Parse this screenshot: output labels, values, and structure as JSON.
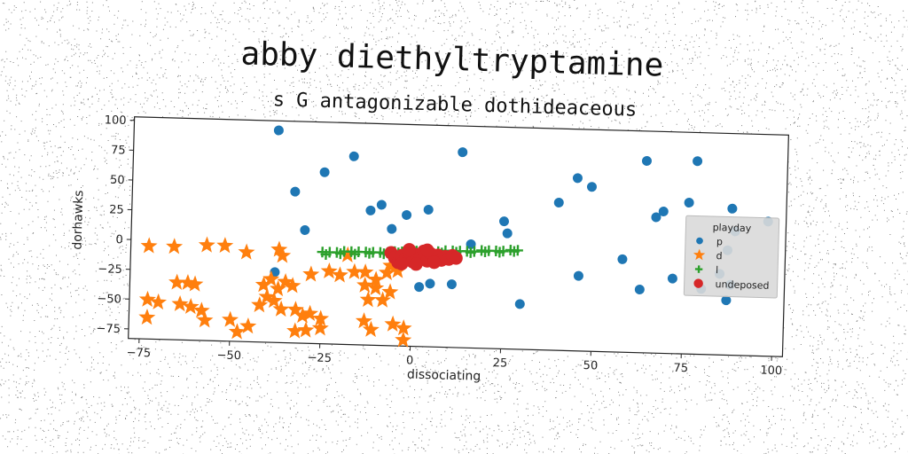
{
  "titles": {
    "main": "abby diethyltryptamine",
    "sub": "s G antagonizable dothideaceous"
  },
  "chart_data": {
    "type": "scatter",
    "title": "abby diethyltryptamine",
    "subtitle": "s G antagonizable dothideaceous",
    "xlabel": "dissociating",
    "ylabel": "dorhawks",
    "xlim": [
      -78,
      103
    ],
    "ylim": [
      -83,
      103
    ],
    "xticks": [
      -75,
      -50,
      -25,
      0,
      25,
      50,
      75,
      100
    ],
    "yticks": [
      -75,
      -50,
      -25,
      0,
      25,
      50,
      75,
      100
    ],
    "grid": false,
    "legend": {
      "title": "playday",
      "placement": "right"
    },
    "series": [
      {
        "name": "p",
        "marker": "circle",
        "color": "#1f77b4",
        "points": [
          [
            -38,
            95
          ],
          [
            -33,
            44
          ],
          [
            -25,
            61
          ],
          [
            -17,
            75
          ],
          [
            -30,
            12
          ],
          [
            -12,
            30
          ],
          [
            -9,
            35
          ],
          [
            -6,
            15
          ],
          [
            -2,
            27
          ],
          [
            4,
            32
          ],
          [
            13,
            81
          ],
          [
            25,
            24
          ],
          [
            26,
            14
          ],
          [
            30,
            -45
          ],
          [
            16,
            4
          ],
          [
            11,
            -30
          ],
          [
            -38,
            -24
          ],
          [
            5,
            -30
          ],
          [
            2,
            -33
          ],
          [
            40,
            41
          ],
          [
            45,
            62
          ],
          [
            49,
            55
          ],
          [
            46,
            -20
          ],
          [
            58,
            -5
          ],
          [
            64,
            78
          ],
          [
            67,
            31
          ],
          [
            69,
            36
          ],
          [
            76,
            44
          ],
          [
            78,
            79
          ],
          [
            88,
            40
          ],
          [
            98,
            30
          ],
          [
            89,
            21
          ],
          [
            87,
            5
          ],
          [
            85,
            -15
          ],
          [
            88,
            -24
          ],
          [
            87,
            -37
          ],
          [
            80,
            -28
          ],
          [
            72,
            -20
          ],
          [
            63,
            -30
          ],
          [
            -5,
            -10
          ],
          [
            0,
            -5
          ],
          [
            3,
            -8
          ]
        ]
      },
      {
        "name": "d",
        "marker": "star",
        "color": "#ff7f0e",
        "points": [
          [
            -73,
            -5
          ],
          [
            -66,
            -5
          ],
          [
            -57,
            -3
          ],
          [
            -52,
            -3
          ],
          [
            -46,
            -8
          ],
          [
            -36,
            -10
          ],
          [
            -73,
            -50
          ],
          [
            -70,
            -52
          ],
          [
            -73,
            -65
          ],
          [
            -65,
            -35
          ],
          [
            -62,
            -35
          ],
          [
            -60,
            -36
          ],
          [
            -64,
            -53
          ],
          [
            -61,
            -55
          ],
          [
            -58,
            -58
          ],
          [
            -57,
            -66
          ],
          [
            -50,
            -65
          ],
          [
            -48,
            -75
          ],
          [
            -45,
            -70
          ],
          [
            -42,
            -52
          ],
          [
            -40,
            -45
          ],
          [
            -41,
            -35
          ],
          [
            -39,
            -30
          ],
          [
            -37,
            -38
          ],
          [
            -35,
            -32
          ],
          [
            -33,
            -35
          ],
          [
            -38,
            -48
          ],
          [
            -36,
            -55
          ],
          [
            -32,
            -55
          ],
          [
            -30,
            -60
          ],
          [
            -28,
            -58
          ],
          [
            -25,
            -62
          ],
          [
            -25,
            -70
          ],
          [
            -29,
            -72
          ],
          [
            -32,
            -73
          ],
          [
            -28,
            -25
          ],
          [
            -23,
            -22
          ],
          [
            -20,
            -25
          ],
          [
            -16,
            -22
          ],
          [
            -13,
            -22
          ],
          [
            -10,
            -28
          ],
          [
            -7,
            -22
          ],
          [
            -13,
            -33
          ],
          [
            -10,
            -35
          ],
          [
            -12,
            -45
          ],
          [
            -8,
            -45
          ],
          [
            -13,
            -63
          ],
          [
            -11,
            -70
          ],
          [
            -5,
            -65
          ],
          [
            -2,
            -68
          ],
          [
            -2,
            -78
          ],
          [
            -6,
            -16
          ],
          [
            -4,
            -20
          ],
          [
            -6,
            -38
          ],
          [
            -37,
            -5
          ],
          [
            -18,
            -8
          ]
        ]
      },
      {
        "name": "l",
        "marker": "plus",
        "color": "#2ca02c",
        "points": [
          [
            -25,
            -6
          ],
          [
            -23,
            -6
          ],
          [
            -21,
            -6
          ],
          [
            -19,
            -5
          ],
          [
            -17,
            -5
          ],
          [
            -15,
            -5
          ],
          [
            -13,
            -5
          ],
          [
            -11,
            -5
          ],
          [
            -9,
            -5
          ],
          [
            -7,
            -5
          ],
          [
            -5,
            -4
          ],
          [
            -3,
            -4
          ],
          [
            -1,
            -4
          ],
          [
            1,
            -3
          ],
          [
            3,
            -3
          ],
          [
            5,
            -3
          ],
          [
            7,
            -3
          ],
          [
            9,
            -2
          ],
          [
            11,
            -2
          ],
          [
            13,
            -2
          ],
          [
            15,
            -2
          ],
          [
            17,
            -2
          ],
          [
            19,
            -1
          ],
          [
            21,
            -1
          ],
          [
            23,
            -1
          ],
          [
            25,
            -1
          ],
          [
            27,
            0
          ],
          [
            29,
            0
          ],
          [
            -24,
            -8
          ],
          [
            -20,
            -7
          ],
          [
            -16,
            -7
          ],
          [
            -12,
            -6
          ],
          [
            -8,
            -6
          ],
          [
            -4,
            -5
          ],
          [
            0,
            -5
          ],
          [
            4,
            -4
          ],
          [
            8,
            -4
          ],
          [
            12,
            -3
          ],
          [
            16,
            -3
          ],
          [
            20,
            -2
          ],
          [
            24,
            -2
          ],
          [
            28,
            -1
          ]
        ]
      },
      {
        "name": "undeposed",
        "marker": "circle",
        "color": "#d62728",
        "points": [
          [
            -6,
            -5
          ],
          [
            -5,
            -9
          ],
          [
            -4,
            -13
          ],
          [
            -3,
            -7
          ],
          [
            -2,
            -10
          ],
          [
            -1,
            -4
          ],
          [
            0,
            -12
          ],
          [
            1,
            -6
          ],
          [
            2,
            -9
          ],
          [
            3,
            -3
          ],
          [
            4,
            -11
          ],
          [
            5,
            -5
          ],
          [
            6,
            -8
          ],
          [
            7,
            -6
          ],
          [
            8,
            -10
          ],
          [
            9,
            -7
          ],
          [
            10,
            -9
          ],
          [
            11,
            -6
          ],
          [
            12,
            -8
          ],
          [
            -3,
            -14
          ],
          [
            1,
            -14
          ],
          [
            4,
            -2
          ],
          [
            -1,
            -2
          ],
          [
            6,
            -12
          ]
        ]
      }
    ]
  }
}
